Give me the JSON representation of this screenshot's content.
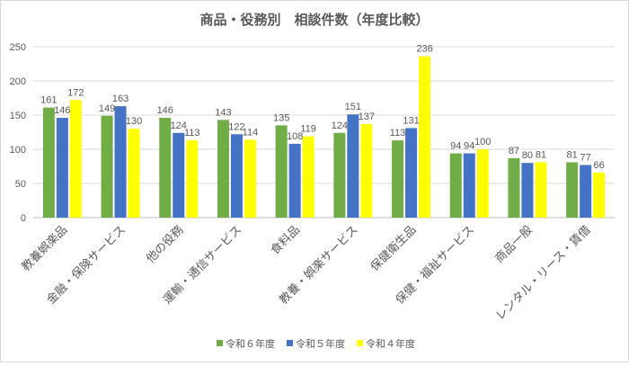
{
  "chart_data": {
    "type": "bar",
    "title": "商品・役務別　相談件数（年度比較）",
    "categories": [
      "教養娯楽品",
      "金融・保険サービス",
      "他の役務",
      "運輸・通信サービス",
      "食料品",
      "教養・娯楽サービス",
      "保健衛生品",
      "保健・福祉サービス",
      "商品一般",
      "レンタル・リース・賃借"
    ],
    "series": [
      {
        "name": "令和６年度",
        "color": "#70ad47",
        "values": [
          161,
          149,
          146,
          143,
          135,
          124,
          113,
          94,
          87,
          81
        ]
      },
      {
        "name": "令和５年度",
        "color": "#4472c4",
        "values": [
          146,
          163,
          124,
          122,
          108,
          151,
          131,
          94,
          80,
          77
        ]
      },
      {
        "name": "令和４年度",
        "color": "#ffff00",
        "values": [
          172,
          130,
          113,
          114,
          119,
          137,
          236,
          100,
          81,
          66
        ]
      }
    ],
    "ylim": [
      0,
      250
    ],
    "yticks": [
      0,
      50,
      100,
      150,
      200,
      250
    ],
    "grid": true,
    "data_labels": true,
    "legend": "bottom",
    "xlabel": "",
    "ylabel": ""
  }
}
